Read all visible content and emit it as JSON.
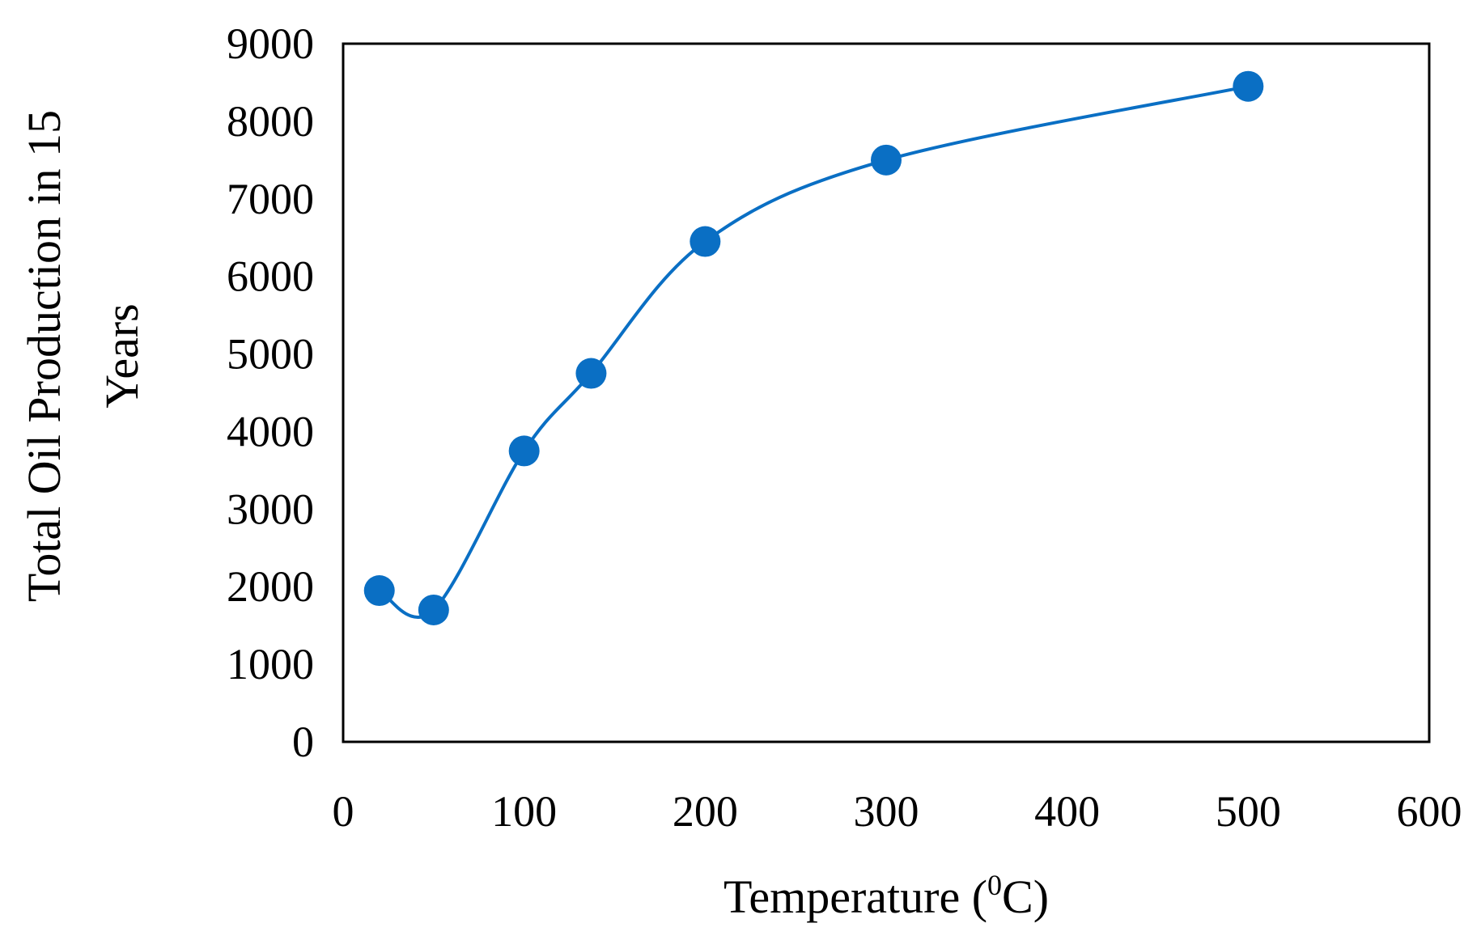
{
  "chart_data": {
    "type": "scatter",
    "title": "",
    "xlabel": "Temperature (",
    "xlabel_sup": "0",
    "xlabel_suffix": "C)",
    "ylabel_lines": [
      "Total Oil Production in 15",
      "Years"
    ],
    "xlim": [
      0,
      600
    ],
    "ylim": [
      0,
      9000
    ],
    "xticks": [
      0,
      100,
      200,
      300,
      400,
      500,
      600
    ],
    "yticks": [
      0,
      1000,
      2000,
      3000,
      4000,
      5000,
      6000,
      7000,
      8000,
      9000
    ],
    "grid": false,
    "legend": "none",
    "series": [
      {
        "name": "Total Oil Production",
        "color": "#0A6FC4",
        "smooth_line": true,
        "x": [
          20,
          50,
          100,
          137,
          200,
          300,
          500
        ],
        "y": [
          1950,
          1700,
          3750,
          4750,
          6450,
          7500,
          8450
        ]
      }
    ]
  }
}
